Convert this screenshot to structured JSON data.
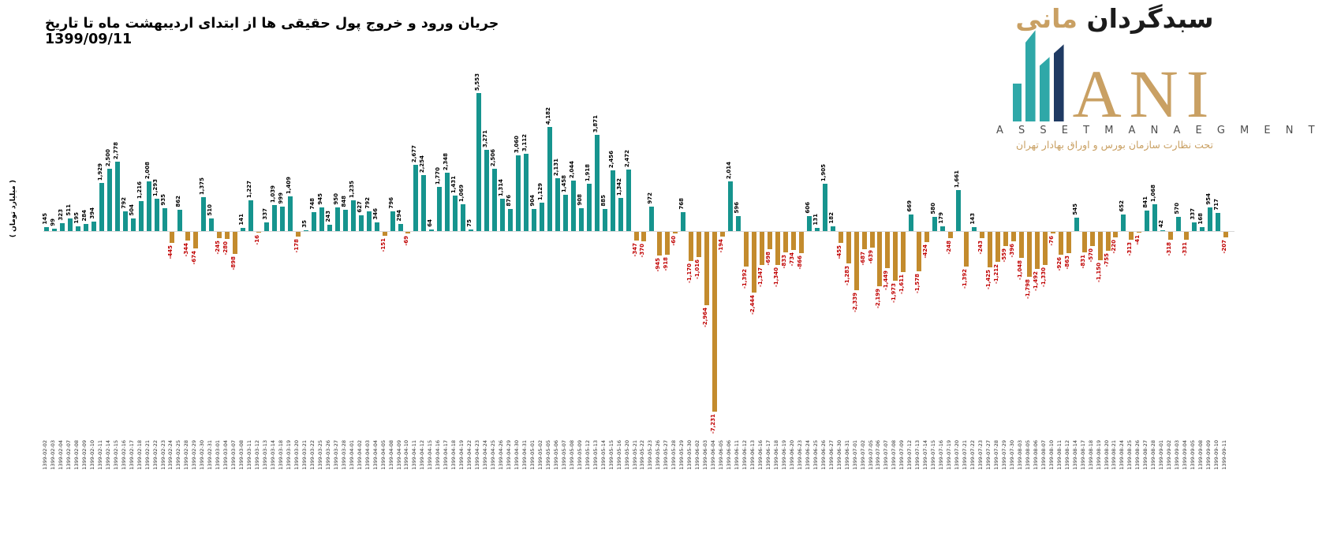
{
  "title": "جریان ورود و خروج پول حقیقی ها از ابتدای اردیبهشت ماه تا تاریخ 1399/09/11",
  "y_axis_label": "( میلیارد تومان )",
  "logo": {
    "name_fa_dark": "سبدگردان",
    "name_fa_gold": "مانی",
    "name_en": "ANI",
    "subtitle_en": "A S S E T M A N A E G M E N T",
    "tagline_fa": "تحت نظارت سازمان بورس و اوراق بهادار تهران",
    "colors": {
      "teal": "#2fa8a8",
      "navy": "#1f3a63",
      "gold": "#c9a063",
      "gray": "#4d4d4d"
    }
  },
  "chart_data": {
    "type": "bar",
    "title": "جریان ورود و خروج پول حقیقی ها از ابتدای اردیبهشت ماه تا تاریخ 1399/09/11",
    "xlabel": "",
    "ylabel": "میلیارد تومان",
    "ylim": [
      -7500,
      5800
    ],
    "grid": false,
    "legend": "none",
    "categories": [
      "1399-02-02",
      "1399-02-03",
      "1399-02-04",
      "1399-02-07",
      "1399-02-08",
      "1399-02-09",
      "1399-02-10",
      "1399-02-11",
      "1399-02-14",
      "1399-02-15",
      "1399-02-16",
      "1399-02-17",
      "1399-02-18",
      "1399-02-21",
      "1399-02-22",
      "1399-02-23",
      "1399-02-24",
      "1399-02-25",
      "1399-02-28",
      "1399-02-29",
      "1399-02-30",
      "1399-02-31",
      "1399-03-01",
      "1399-03-04",
      "1399-03-07",
      "1399-03-08",
      "1399-03-11",
      "1399-03-12",
      "1399-03-13",
      "1399-03-14",
      "1399-03-18",
      "1399-03-19",
      "1399-03-20",
      "1399-03-21",
      "1399-03-22",
      "1399-03-25",
      "1399-03-26",
      "1399-03-27",
      "1399-03-28",
      "1399-04-01",
      "1399-04-02",
      "1399-04-03",
      "1399-04-04",
      "1399-04-05",
      "1399-04-08",
      "1399-04-09",
      "1399-04-10",
      "1399-04-11",
      "1399-04-12",
      "1399-04-15",
      "1399-04-16",
      "1399-04-17",
      "1399-04-18",
      "1399-04-19",
      "1399-04-22",
      "1399-04-23",
      "1399-04-24",
      "1399-04-25",
      "1399-04-26",
      "1399-04-29",
      "1399-04-30",
      "1399-04-31",
      "1399-05-01",
      "1399-05-02",
      "1399-05-05",
      "1399-05-06",
      "1399-05-07",
      "1399-05-08",
      "1399-05-09",
      "1399-05-12",
      "1399-05-13",
      "1399-05-14",
      "1399-05-15",
      "1399-05-16",
      "1399-05-20",
      "1399-05-21",
      "1399-05-22",
      "1399-05-23",
      "1399-05-26",
      "1399-05-27",
      "1399-05-28",
      "1399-05-29",
      "1399-05-30",
      "1399-06-02",
      "1399-06-03",
      "1399-06-04",
      "1399-06-05",
      "1399-06-06",
      "1399-06-11",
      "1399-06-12",
      "1399-06-13",
      "1399-06-16",
      "1399-06-17",
      "1399-06-18",
      "1399-06-19",
      "1399-06-20",
      "1399-06-23",
      "1399-06-24",
      "1399-06-25",
      "1399-06-26",
      "1399-06-27",
      "1399-06-30",
      "1399-06-31",
      "1399-07-01",
      "1399-07-02",
      "1399-07-05",
      "1399-07-06",
      "1399-07-07",
      "1399-07-08",
      "1399-07-09",
      "1399-07-12",
      "1399-07-13",
      "1399-07-14",
      "1399-07-15",
      "1399-07-16",
      "1399-07-19",
      "1399-07-20",
      "1399-07-21",
      "1399-07-22",
      "1399-07-23",
      "1399-07-27",
      "1399-07-28",
      "1399-07-29",
      "1399-07-30",
      "1399-08-03",
      "1399-08-05",
      "1399-08-06",
      "1399-08-07",
      "1399-08-10",
      "1399-08-11",
      "1399-08-12",
      "1399-08-14",
      "1399-08-17",
      "1399-08-18",
      "1399-08-19",
      "1399-08-20",
      "1399-08-21",
      "1399-08-24",
      "1399-08-25",
      "1399-08-26",
      "1399-08-27",
      "1399-08-28",
      "1399-09-01",
      "1399-09-02",
      "1399-09-03",
      "1399-09-04",
      "1399-09-05",
      "1399-09-08",
      "1399-09-09",
      "1399-09-10",
      "1399-09-11"
    ],
    "values": [
      145,
      99,
      323,
      511,
      195,
      284,
      394,
      1929,
      2500,
      2778,
      792,
      504,
      1216,
      2008,
      1293,
      935,
      -445,
      862,
      -344,
      -674,
      1375,
      510,
      -245,
      -280,
      -898,
      141,
      1227,
      -16,
      337,
      1039,
      999,
      1409,
      -178,
      35,
      748,
      945,
      243,
      950,
      848,
      1235,
      627,
      792,
      346,
      -151,
      796,
      294,
      -69,
      2677,
      2254,
      64,
      1770,
      2348,
      1431,
      1069,
      75,
      5553,
      3271,
      2506,
      1314,
      876,
      3060,
      3112,
      904,
      1129,
      4182,
      2131,
      1458,
      2044,
      908,
      1918,
      3871,
      885,
      2456,
      1342,
      2472,
      -347,
      -370,
      972,
      -945,
      -918,
      -60,
      768,
      -1170,
      -1016,
      -2964,
      -7231,
      -194,
      2014,
      596,
      -1392,
      -2444,
      -1347,
      -698,
      -1340,
      -833,
      -734,
      -866,
      606,
      131,
      1905,
      182,
      -455,
      -1283,
      -2339,
      -687,
      -639,
      -2199,
      -1449,
      -1973,
      -1611,
      669,
      -1578,
      -424,
      580,
      179,
      -248,
      1661,
      -1392,
      143,
      -243,
      -1425,
      -1212,
      -559,
      -396,
      -1048,
      -1798,
      -1492,
      -1330,
      -76,
      -926,
      -863,
      545,
      -831,
      -570,
      -1150,
      -755,
      -220,
      652,
      -313,
      -41,
      841,
      1068,
      42,
      -318,
      570,
      -331,
      337,
      168,
      954,
      717,
      -207
    ],
    "colors": {
      "positive_bar": "#16948e",
      "negative_bar": "#c38b2d",
      "positive_label": "#000000",
      "negative_label": "#c00000",
      "baseline": "#d8d8d8"
    }
  }
}
